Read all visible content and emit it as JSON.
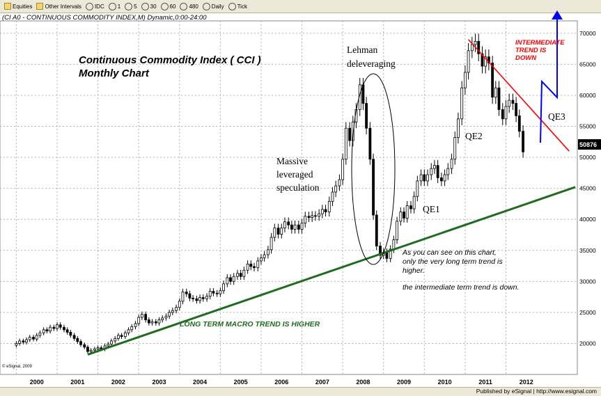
{
  "toolbar": {
    "items": [
      {
        "icon": "folder-icon",
        "label": "Equities"
      },
      {
        "icon": "folder-icon",
        "label": "Other Intervals"
      },
      {
        "icon": "clock-icon",
        "label": "IDC"
      },
      {
        "icon": "clock-icon",
        "label": "1"
      },
      {
        "icon": "clock-icon",
        "label": "5"
      },
      {
        "icon": "clock-icon",
        "label": "30"
      },
      {
        "icon": "clock-icon",
        "label": "60"
      },
      {
        "icon": "clock-icon",
        "label": "480"
      },
      {
        "icon": "clock-icon",
        "label": "Daily"
      },
      {
        "icon": "clock-icon",
        "label": "Tick"
      }
    ]
  },
  "caption": "(CI A0 - CONTINUOUS COMMODITY INDEX,M) Dynamic,0:00-24:00",
  "footer": {
    "published": "Published by eSignal | http://www.esignal.com"
  },
  "copyright": "© eSignal, 2009",
  "colors": {
    "up": "#ffffff",
    "down": "#000000",
    "green_trend": "#1f6b1f",
    "red_trend": "#ff0000",
    "qe_arrow": "#0000ff",
    "price_box": "#000000"
  },
  "chart_data": {
    "type": "candlestick",
    "title": "Continuous Commodity Index ( CCI )",
    "subtitle": "Monthly Chart",
    "x_tick_labels": [
      "2000",
      "2001",
      "2002",
      "2003",
      "2004",
      "2005",
      "2006",
      "2007",
      "2008",
      "2009",
      "2010",
      "2011",
      "2012"
    ],
    "y_tick_labels": [
      "20000",
      "25000",
      "30000",
      "35000",
      "40000",
      "45000",
      "50000",
      "55000",
      "60000",
      "65000",
      "70000"
    ],
    "ylim": [
      15000,
      72000
    ],
    "xlim": [
      1999.6,
      2013.75
    ],
    "last_price": "50876",
    "series": [
      {
        "points": [
          [
            2000.0,
            20000
          ],
          [
            2000.08,
            20400
          ],
          [
            2000.17,
            20200
          ],
          [
            2000.25,
            20600
          ],
          [
            2000.33,
            21000
          ],
          [
            2000.42,
            20700
          ],
          [
            2000.5,
            21300
          ],
          [
            2000.58,
            21700
          ],
          [
            2000.67,
            22200
          ],
          [
            2000.75,
            22000
          ],
          [
            2000.83,
            22600
          ],
          [
            2000.92,
            22400
          ],
          [
            2001.0,
            23000
          ],
          [
            2001.08,
            22600
          ],
          [
            2001.17,
            22200
          ],
          [
            2001.25,
            21800
          ],
          [
            2001.33,
            21300
          ],
          [
            2001.42,
            20800
          ],
          [
            2001.5,
            20300
          ],
          [
            2001.58,
            19800
          ],
          [
            2001.67,
            19400
          ],
          [
            2001.75,
            18700
          ],
          [
            2001.83,
            18900
          ],
          [
            2001.92,
            19100
          ],
          [
            2002.0,
            19300
          ],
          [
            2002.08,
            19100
          ],
          [
            2002.17,
            19600
          ],
          [
            2002.25,
            19900
          ],
          [
            2002.33,
            20400
          ],
          [
            2002.42,
            20800
          ],
          [
            2002.5,
            21300
          ],
          [
            2002.58,
            21100
          ],
          [
            2002.67,
            21700
          ],
          [
            2002.75,
            22200
          ],
          [
            2002.83,
            22700
          ],
          [
            2002.92,
            23200
          ],
          [
            2003.0,
            24200
          ],
          [
            2003.08,
            24700
          ],
          [
            2003.17,
            23800
          ],
          [
            2003.25,
            23300
          ],
          [
            2003.33,
            23500
          ],
          [
            2003.42,
            23300
          ],
          [
            2003.5,
            23800
          ],
          [
            2003.58,
            24100
          ],
          [
            2003.67,
            24400
          ],
          [
            2003.75,
            25000
          ],
          [
            2003.83,
            25300
          ],
          [
            2003.92,
            25800
          ],
          [
            2004.0,
            26800
          ],
          [
            2004.08,
            28300
          ],
          [
            2004.17,
            28000
          ],
          [
            2004.25,
            27300
          ],
          [
            2004.33,
            27200
          ],
          [
            2004.42,
            26900
          ],
          [
            2004.5,
            27400
          ],
          [
            2004.58,
            27200
          ],
          [
            2004.67,
            27600
          ],
          [
            2004.75,
            28400
          ],
          [
            2004.83,
            28100
          ],
          [
            2004.92,
            28000
          ],
          [
            2005.0,
            28500
          ],
          [
            2005.08,
            29600
          ],
          [
            2005.17,
            30600
          ],
          [
            2005.25,
            30000
          ],
          [
            2005.33,
            30800
          ],
          [
            2005.42,
            31300
          ],
          [
            2005.5,
            30800
          ],
          [
            2005.58,
            31800
          ],
          [
            2005.67,
            32800
          ],
          [
            2005.75,
            32400
          ],
          [
            2005.83,
            32200
          ],
          [
            2005.92,
            33300
          ],
          [
            2006.0,
            33800
          ],
          [
            2006.08,
            34300
          ],
          [
            2006.17,
            35100
          ],
          [
            2006.25,
            37100
          ],
          [
            2006.33,
            38600
          ],
          [
            2006.42,
            37600
          ],
          [
            2006.5,
            38600
          ],
          [
            2006.58,
            39600
          ],
          [
            2006.67,
            39100
          ],
          [
            2006.75,
            38400
          ],
          [
            2006.83,
            39100
          ],
          [
            2006.92,
            38400
          ],
          [
            2007.0,
            39400
          ],
          [
            2007.08,
            40500
          ],
          [
            2007.17,
            40300
          ],
          [
            2007.25,
            40600
          ],
          [
            2007.33,
            40500
          ],
          [
            2007.42,
            40900
          ],
          [
            2007.5,
            41600
          ],
          [
            2007.58,
            41200
          ],
          [
            2007.67,
            42900
          ],
          [
            2007.75,
            44400
          ],
          [
            2007.83,
            45400
          ],
          [
            2007.92,
            46400
          ],
          [
            2008.0,
            49700
          ],
          [
            2008.08,
            54700
          ],
          [
            2008.17,
            52700
          ],
          [
            2008.25,
            55700
          ],
          [
            2008.33,
            57700
          ],
          [
            2008.42,
            61700
          ],
          [
            2008.5,
            58700
          ],
          [
            2008.58,
            54700
          ],
          [
            2008.67,
            49700
          ],
          [
            2008.75,
            40700
          ],
          [
            2008.83,
            35700
          ],
          [
            2008.92,
            34200
          ],
          [
            2009.0,
            34700
          ],
          [
            2009.08,
            33700
          ],
          [
            2009.17,
            35200
          ],
          [
            2009.25,
            36700
          ],
          [
            2009.33,
            39700
          ],
          [
            2009.42,
            41200
          ],
          [
            2009.5,
            40200
          ],
          [
            2009.58,
            42200
          ],
          [
            2009.67,
            41700
          ],
          [
            2009.75,
            43700
          ],
          [
            2009.83,
            46200
          ],
          [
            2009.92,
            47200
          ],
          [
            2010.0,
            46200
          ],
          [
            2010.08,
            47200
          ],
          [
            2010.17,
            48200
          ],
          [
            2010.25,
            48700
          ],
          [
            2010.33,
            46700
          ],
          [
            2010.42,
            46200
          ],
          [
            2010.5,
            47200
          ],
          [
            2010.58,
            48200
          ],
          [
            2010.67,
            49700
          ],
          [
            2010.75,
            53200
          ],
          [
            2010.83,
            56200
          ],
          [
            2010.92,
            61200
          ],
          [
            2011.0,
            63700
          ],
          [
            2011.08,
            67200
          ],
          [
            2011.17,
            68200
          ],
          [
            2011.25,
            68700
          ],
          [
            2011.33,
            66700
          ],
          [
            2011.42,
            64700
          ],
          [
            2011.5,
            66200
          ],
          [
            2011.58,
            65200
          ],
          [
            2011.67,
            59700
          ],
          [
            2011.75,
            61200
          ],
          [
            2011.83,
            57700
          ],
          [
            2011.92,
            56200
          ],
          [
            2012.0,
            58200
          ],
          [
            2012.08,
            59200
          ],
          [
            2012.17,
            58700
          ],
          [
            2012.25,
            56700
          ],
          [
            2012.33,
            54200
          ],
          [
            2012.42,
            50876
          ]
        ]
      }
    ],
    "trendlines": [
      {
        "label": "LONG TERM MACRO TREND IS HIGHER",
        "from": [
          2001.75,
          18200
        ],
        "to": [
          2013.7,
          45200
        ]
      },
      {
        "label": "INTERMEDIATE TREND IS DOWN",
        "from": [
          2011.08,
          69000
        ],
        "to": [
          2013.55,
          51000
        ]
      }
    ],
    "annotations": [
      "Massive leveraged speculation",
      "Lehman deleveraging",
      "QE1",
      "QE2",
      "QE3",
      "As you can see on this chart, only the very long term trend is higher.",
      "the intermediate term trend is down."
    ]
  }
}
